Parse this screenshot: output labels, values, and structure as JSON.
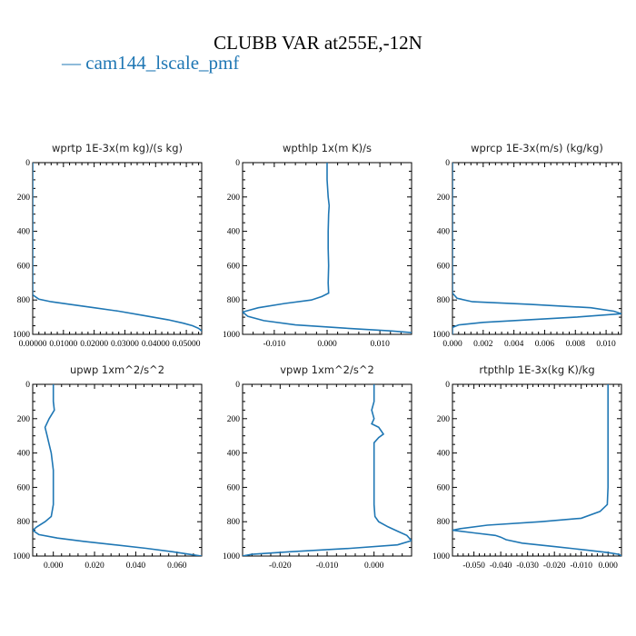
{
  "figure": {
    "title": "CLUBB VAR at255E,-12N",
    "legend": [
      {
        "name": "cam144_lscale_pmf",
        "color": "#1f77b4"
      }
    ]
  },
  "chart_data": [
    {
      "type": "line",
      "title": "wprtp  1E-3x(m kg)/(s kg)",
      "xlim": [
        0.0,
        0.055
      ],
      "ylim": [
        1000,
        0
      ],
      "xticks": [
        0.0,
        0.01,
        0.02,
        0.03,
        0.04,
        0.05
      ],
      "xtick_labels": [
        "0.00000",
        "0.01000",
        "0.02000",
        "0.03000",
        "0.04000",
        "0.05000"
      ],
      "yticks": [
        0,
        200,
        400,
        600,
        800,
        1000
      ],
      "ytick_labels": [
        "0",
        "200",
        "400",
        "600",
        "800",
        "1000"
      ],
      "series": [
        {
          "name": "cam144_lscale_pmf",
          "points": [
            [
              0,
              0
            ],
            [
              0,
              150
            ],
            [
              0,
              300
            ],
            [
              0,
              500
            ],
            [
              0,
              700
            ],
            [
              0,
              770
            ],
            [
              0.002,
              795
            ],
            [
              0.006,
              810
            ],
            [
              0.012,
              825
            ],
            [
              0.02,
              845
            ],
            [
              0.028,
              865
            ],
            [
              0.036,
              890
            ],
            [
              0.044,
              915
            ],
            [
              0.049,
              935
            ],
            [
              0.052,
              950
            ],
            [
              0.054,
              965
            ],
            [
              0.055,
              980
            ]
          ]
        }
      ]
    },
    {
      "type": "line",
      "title": "wpthlp  1x(m K)/s",
      "xlim": [
        -0.016,
        0.016
      ],
      "ylim": [
        1000,
        0
      ],
      "xticks": [
        -0.01,
        0.0,
        0.01
      ],
      "xtick_labels": [
        "-0.010",
        "0.000",
        "0.010"
      ],
      "yticks": [
        0,
        200,
        400,
        600,
        800,
        1000
      ],
      "ytick_labels": [
        "0",
        "200",
        "400",
        "600",
        "800",
        "1000"
      ],
      "series": [
        {
          "name": "cam144_lscale_pmf",
          "points": [
            [
              0,
              0
            ],
            [
              0,
              100
            ],
            [
              0.0002,
              200
            ],
            [
              0.0004,
              250
            ],
            [
              0.0003,
              300
            ],
            [
              0.0002,
              400
            ],
            [
              0.0002,
              500
            ],
            [
              0.0003,
              600
            ],
            [
              0.0002,
              700
            ],
            [
              0.0003,
              760
            ],
            [
              -0.001,
              780
            ],
            [
              -0.003,
              800
            ],
            [
              -0.008,
              820
            ],
            [
              -0.013,
              845
            ],
            [
              -0.016,
              870
            ],
            [
              -0.015,
              895
            ],
            [
              -0.012,
              920
            ],
            [
              -0.006,
              945
            ],
            [
              0.004,
              965
            ],
            [
              0.012,
              980
            ],
            [
              0.016,
              990
            ]
          ]
        }
      ]
    },
    {
      "type": "line",
      "title": "wprcp  1E-3x(m/s) (kg/kg)",
      "xlim": [
        0.0,
        0.011
      ],
      "ylim": [
        1000,
        0
      ],
      "xticks": [
        0.0,
        0.002,
        0.004,
        0.006,
        0.008,
        0.01
      ],
      "xtick_labels": [
        "0.000",
        "0.002",
        "0.004",
        "0.006",
        "0.008",
        "0.010"
      ],
      "yticks": [
        0,
        200,
        400,
        600,
        800,
        1000
      ],
      "ytick_labels": [
        "0",
        "200",
        "400",
        "600",
        "800",
        "1000"
      ],
      "series": [
        {
          "name": "cam144_lscale_pmf",
          "points": [
            [
              0,
              0
            ],
            [
              0,
              200
            ],
            [
              0,
              400
            ],
            [
              0,
              600
            ],
            [
              0,
              760
            ],
            [
              0.0003,
              790
            ],
            [
              0.0013,
              810
            ],
            [
              0.005,
              825
            ],
            [
              0.009,
              845
            ],
            [
              0.0105,
              865
            ],
            [
              0.011,
              880
            ],
            [
              0.008,
              900
            ],
            [
              0.005,
              915
            ],
            [
              0.002,
              930
            ],
            [
              0.0004,
              945
            ],
            [
              0,
              960
            ],
            [
              0,
              1000
            ]
          ]
        }
      ]
    },
    {
      "type": "line",
      "title": "upwp  1xm^2/s^2",
      "xlim": [
        -0.01,
        0.072
      ],
      "ylim": [
        1000,
        0
      ],
      "xticks": [
        0.0,
        0.02,
        0.04,
        0.06
      ],
      "xtick_labels": [
        "0.000",
        "0.020",
        "0.040",
        "0.060"
      ],
      "yticks": [
        0,
        200,
        400,
        600,
        800,
        1000
      ],
      "ytick_labels": [
        "0",
        "200",
        "400",
        "600",
        "800",
        "1000"
      ],
      "series": [
        {
          "name": "cam144_lscale_pmf",
          "points": [
            [
              0,
              0
            ],
            [
              0,
              100
            ],
            [
              0.0005,
              150
            ],
            [
              -0.002,
              200
            ],
            [
              -0.004,
              250
            ],
            [
              -0.003,
              300
            ],
            [
              -0.002,
              350
            ],
            [
              -0.001,
              400
            ],
            [
              0,
              500
            ],
            [
              0,
              600
            ],
            [
              0,
              700
            ],
            [
              -0.001,
              770
            ],
            [
              -0.004,
              800
            ],
            [
              -0.008,
              830
            ],
            [
              -0.01,
              850
            ],
            [
              -0.007,
              875
            ],
            [
              0.002,
              895
            ],
            [
              0.015,
              915
            ],
            [
              0.03,
              935
            ],
            [
              0.045,
              955
            ],
            [
              0.058,
              975
            ],
            [
              0.066,
              990
            ],
            [
              0.072,
              1000
            ]
          ]
        }
      ]
    },
    {
      "type": "line",
      "title": "vpwp  1xm^2/s^2",
      "xlim": [
        -0.028,
        0.008
      ],
      "ylim": [
        1000,
        0
      ],
      "xticks": [
        -0.02,
        -0.01,
        0.0
      ],
      "xtick_labels": [
        "-0.020",
        "-0.010",
        "0.000"
      ],
      "yticks": [
        0,
        200,
        400,
        600,
        800,
        1000
      ],
      "ytick_labels": [
        "0",
        "200",
        "400",
        "600",
        "800",
        "1000"
      ],
      "series": [
        {
          "name": "cam144_lscale_pmf",
          "points": [
            [
              0,
              0
            ],
            [
              0,
              100
            ],
            [
              -0.0005,
              150
            ],
            [
              0,
              200
            ],
            [
              -0.0005,
              230
            ],
            [
              0.001,
              250
            ],
            [
              0.0015,
              270
            ],
            [
              0.002,
              290
            ],
            [
              0.001,
              310
            ],
            [
              0,
              340
            ],
            [
              0,
              400
            ],
            [
              0,
              500
            ],
            [
              0,
              600
            ],
            [
              0,
              700
            ],
            [
              0.0002,
              770
            ],
            [
              0.001,
              800
            ],
            [
              0.003,
              830
            ],
            [
              0.005,
              855
            ],
            [
              0.007,
              880
            ],
            [
              0.008,
              910
            ],
            [
              0.005,
              935
            ],
            [
              -0.005,
              955
            ],
            [
              -0.018,
              975
            ],
            [
              -0.026,
              990
            ],
            [
              -0.028,
              1000
            ]
          ]
        }
      ]
    },
    {
      "type": "line",
      "title": "rtpthlp  1E-3x(kg K)/kg",
      "xlim": [
        -0.058,
        0.005
      ],
      "ylim": [
        1000,
        0
      ],
      "xticks": [
        -0.05,
        -0.04,
        -0.03,
        -0.02,
        -0.01,
        0.0
      ],
      "xtick_labels": [
        "-0.050",
        "-0.040",
        "-0.030",
        "-0.020",
        "-0.010",
        "0.000"
      ],
      "yticks": [
        0,
        200,
        400,
        600,
        800,
        1000
      ],
      "ytick_labels": [
        "0",
        "200",
        "400",
        "600",
        "800",
        "1000"
      ],
      "series": [
        {
          "name": "cam144_lscale_pmf",
          "points": [
            [
              0,
              0
            ],
            [
              0,
              200
            ],
            [
              0,
              400
            ],
            [
              0,
              600
            ],
            [
              -0.0003,
              700
            ],
            [
              -0.003,
              740
            ],
            [
              -0.01,
              780
            ],
            [
              -0.025,
              800
            ],
            [
              -0.045,
              820
            ],
            [
              -0.055,
              840
            ],
            [
              -0.058,
              850
            ],
            [
              -0.05,
              865
            ],
            [
              -0.042,
              880
            ],
            [
              -0.04,
              890
            ],
            [
              -0.038,
              905
            ],
            [
              -0.032,
              925
            ],
            [
              -0.02,
              945
            ],
            [
              -0.008,
              965
            ],
            [
              0.0,
              980
            ],
            [
              0.004,
              990
            ],
            [
              0.005,
              1000
            ]
          ]
        }
      ]
    }
  ]
}
